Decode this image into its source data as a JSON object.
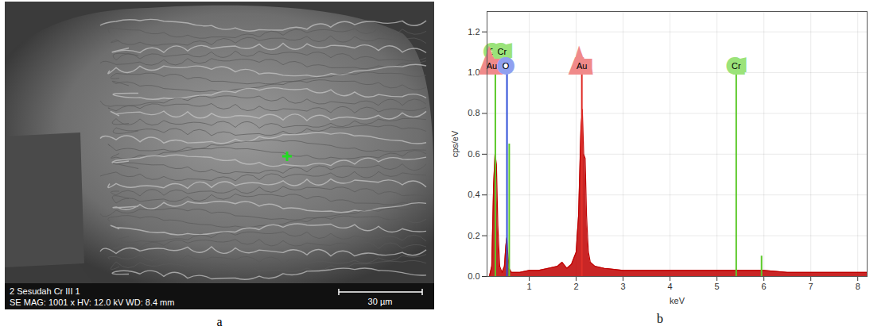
{
  "image_panel": {
    "letter": "a",
    "texts": [
      "2 Sesudah Cr III  1",
      "SE  MAG: 1001 x  HV: 12.0 kV  WD: 8.4 mm"
    ],
    "scale_bar": "30 µm"
  },
  "chart_panel_letter": "b",
  "chart_data": {
    "type": "area",
    "x_label": "keV",
    "y_label": "cps/eV",
    "x": [
      0.15,
      0.2,
      0.24,
      0.27,
      0.3,
      0.33,
      0.37,
      0.42,
      0.47,
      0.5,
      0.52,
      0.54,
      0.57,
      0.62,
      0.7,
      0.8,
      1.0,
      1.2,
      1.4,
      1.6,
      1.7,
      1.8,
      1.9,
      2.0,
      2.05,
      2.1,
      2.13,
      2.16,
      2.19,
      2.22,
      2.26,
      2.3,
      2.4,
      2.6,
      3.0,
      3.5,
      4.0,
      4.5,
      5.0,
      5.5,
      6.0,
      6.5,
      7.0,
      7.5,
      8.0,
      8.2
    ],
    "values": [
      0.0,
      0.05,
      0.45,
      0.6,
      0.55,
      0.25,
      0.05,
      0.02,
      0.05,
      0.15,
      0.19,
      0.12,
      0.04,
      0.02,
      0.02,
      0.02,
      0.03,
      0.03,
      0.04,
      0.05,
      0.07,
      0.04,
      0.06,
      0.12,
      0.3,
      0.72,
      0.82,
      0.6,
      0.58,
      0.3,
      0.12,
      0.07,
      0.05,
      0.04,
      0.03,
      0.03,
      0.03,
      0.03,
      0.03,
      0.03,
      0.03,
      0.02,
      0.02,
      0.02,
      0.02,
      0.02
    ],
    "color": "#c00000",
    "xlim": [
      0.1,
      8.2
    ],
    "xticks": [
      1,
      2,
      3,
      4,
      5,
      6,
      7,
      8
    ],
    "ylim": [
      0,
      1.3
    ],
    "yticks": [
      {
        "value": 0,
        "label": "0.0"
      },
      {
        "value": 0.2,
        "label": "0.2"
      },
      {
        "value": 0.4,
        "label": "0.4"
      },
      {
        "value": 0.6,
        "label": "0.6"
      },
      {
        "value": 0.8,
        "label": "0.8"
      },
      {
        "value": 1.0,
        "label": "1.0"
      },
      {
        "value": 1.2,
        "label": "1.2"
      }
    ],
    "grid": true,
    "element_lines": [
      {
        "element": "C",
        "x": 0.277,
        "height": 1.0,
        "color": "#5cc92a"
      },
      {
        "element": "O",
        "x": 0.525,
        "height": 1.0,
        "color": "#2f4fd8"
      },
      {
        "element": "Cr",
        "x": 0.573,
        "height": 0.65,
        "color": "#5cc92a"
      },
      {
        "element": "Au",
        "x": 2.12,
        "height": 1.0,
        "color": "#e0302a"
      },
      {
        "element": "Cr",
        "x": 5.41,
        "height": 1.0,
        "color": "#5cc92a"
      },
      {
        "element": "Cr",
        "x": 5.95,
        "height": 0.1,
        "color": "#5cc92a"
      }
    ],
    "element_labels": [
      {
        "text": "C",
        "x": 0.2,
        "y": 1.1,
        "color": "#9be37a"
      },
      {
        "text": "Cr",
        "x": 0.42,
        "y": 1.1,
        "color": "#9be37a"
      },
      {
        "text": "Au",
        "x": 0.2,
        "y": 1.03,
        "color": "#f08a8a"
      },
      {
        "text": "O",
        "x": 0.5,
        "y": 1.03,
        "color": "#8fa0f0"
      },
      {
        "text": "Au",
        "x": 2.12,
        "y": 1.03,
        "color": "#f08a8a"
      },
      {
        "text": "Cr",
        "x": 5.41,
        "y": 1.03,
        "color": "#9be37a"
      }
    ]
  }
}
